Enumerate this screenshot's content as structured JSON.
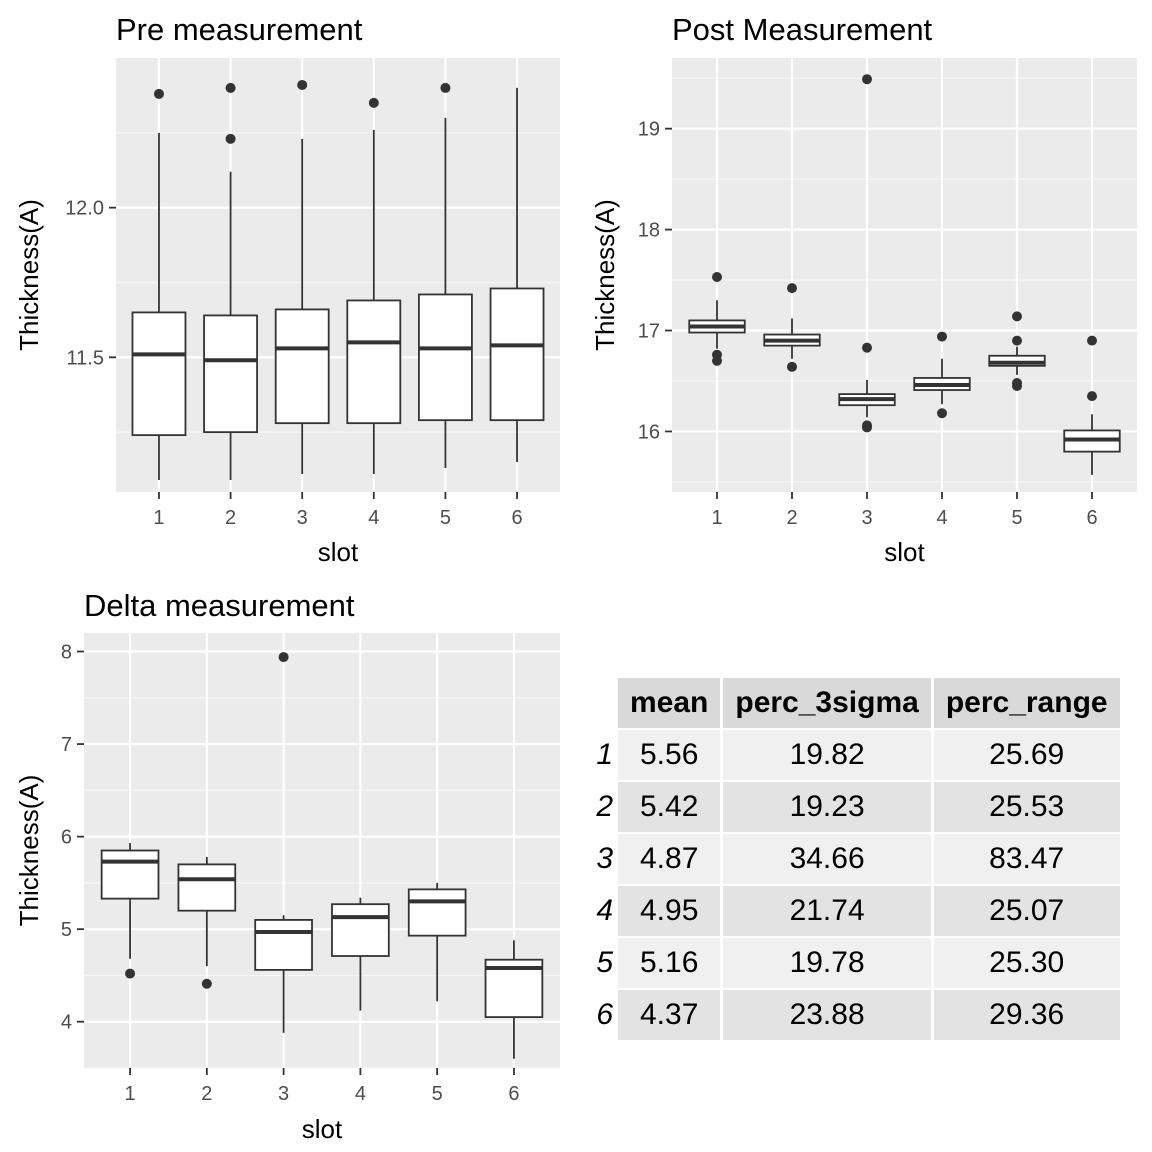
{
  "chart_data": [
    {
      "type": "boxplot",
      "title": "Pre measurement",
      "xlabel": "slot",
      "ylabel": "Thickness(A)",
      "ylim": [
        11.05,
        12.5
      ],
      "yticks": [
        11.5,
        12.0
      ],
      "ytick_labels": [
        "11.5",
        "12.0"
      ],
      "categories": [
        "1",
        "2",
        "3",
        "4",
        "5",
        "6"
      ],
      "boxes": [
        {
          "min": 11.09,
          "q1": 11.24,
          "median": 11.51,
          "q3": 11.65,
          "max": 12.25,
          "outliers": [
            12.38
          ]
        },
        {
          "min": 11.09,
          "q1": 11.25,
          "median": 11.49,
          "q3": 11.64,
          "max": 12.12,
          "outliers": [
            12.23,
            12.4
          ]
        },
        {
          "min": 11.11,
          "q1": 11.28,
          "median": 11.53,
          "q3": 11.66,
          "max": 12.23,
          "outliers": [
            12.41
          ]
        },
        {
          "min": 11.11,
          "q1": 11.28,
          "median": 11.55,
          "q3": 11.69,
          "max": 12.26,
          "outliers": [
            12.35
          ]
        },
        {
          "min": 11.13,
          "q1": 11.29,
          "median": 11.53,
          "q3": 11.71,
          "max": 12.3,
          "outliers": [
            12.4
          ]
        },
        {
          "min": 11.15,
          "q1": 11.29,
          "median": 11.54,
          "q3": 11.73,
          "max": 12.4,
          "outliers": []
        }
      ]
    },
    {
      "type": "boxplot",
      "title": "Post Measurement",
      "xlabel": "slot",
      "ylabel": "Thickness(A)",
      "ylim": [
        15.4,
        19.7
      ],
      "yticks": [
        16,
        17,
        18,
        19
      ],
      "ytick_labels": [
        "16",
        "17",
        "18",
        "19"
      ],
      "categories": [
        "1",
        "2",
        "3",
        "4",
        "5",
        "6"
      ],
      "boxes": [
        {
          "min": 16.82,
          "q1": 16.98,
          "median": 17.04,
          "q3": 17.1,
          "max": 17.3,
          "outliers": [
            17.53,
            16.76,
            16.7
          ]
        },
        {
          "min": 16.72,
          "q1": 16.85,
          "median": 16.9,
          "q3": 16.96,
          "max": 17.12,
          "outliers": [
            17.42,
            16.64
          ]
        },
        {
          "min": 16.14,
          "q1": 16.26,
          "median": 16.32,
          "q3": 16.37,
          "max": 16.51,
          "outliers": [
            19.49,
            16.83,
            16.06,
            16.04
          ]
        },
        {
          "min": 16.27,
          "q1": 16.41,
          "median": 16.46,
          "q3": 16.53,
          "max": 16.72,
          "outliers": [
            16.94,
            16.18
          ]
        },
        {
          "min": 16.56,
          "q1": 16.65,
          "median": 16.68,
          "q3": 16.75,
          "max": 16.84,
          "outliers": [
            17.14,
            16.9,
            16.48,
            16.45
          ]
        },
        {
          "min": 15.57,
          "q1": 15.8,
          "median": 15.92,
          "q3": 16.01,
          "max": 16.17,
          "outliers": [
            16.9,
            16.35
          ]
        }
      ]
    },
    {
      "type": "boxplot",
      "title": "Delta measurement",
      "xlabel": "slot",
      "ylabel": "Thickness(A)",
      "ylim": [
        3.5,
        8.2
      ],
      "yticks": [
        4,
        5,
        6,
        7,
        8
      ],
      "ytick_labels": [
        "4",
        "5",
        "6",
        "7",
        "8"
      ],
      "categories": [
        "1",
        "2",
        "3",
        "4",
        "5",
        "6"
      ],
      "boxes": [
        {
          "min": 4.68,
          "q1": 5.33,
          "median": 5.73,
          "q3": 5.85,
          "max": 5.93,
          "outliers": [
            4.52
          ]
        },
        {
          "min": 4.6,
          "q1": 5.2,
          "median": 5.54,
          "q3": 5.7,
          "max": 5.78,
          "outliers": [
            4.41
          ]
        },
        {
          "min": 3.88,
          "q1": 4.56,
          "median": 4.97,
          "q3": 5.1,
          "max": 5.15,
          "outliers": [
            7.94
          ]
        },
        {
          "min": 4.12,
          "q1": 4.71,
          "median": 5.13,
          "q3": 5.27,
          "max": 5.34,
          "outliers": []
        },
        {
          "min": 4.22,
          "q1": 4.93,
          "median": 5.3,
          "q3": 5.43,
          "max": 5.5,
          "outliers": []
        },
        {
          "min": 3.6,
          "q1": 4.05,
          "median": 4.58,
          "q3": 4.67,
          "max": 4.88,
          "outliers": []
        }
      ]
    },
    {
      "type": "table",
      "columns": [
        "mean",
        "perc_3sigma",
        "perc_range"
      ],
      "row_labels": [
        "1",
        "2",
        "3",
        "4",
        "5",
        "6"
      ],
      "rows": [
        [
          "5.56",
          "19.82",
          "25.69"
        ],
        [
          "5.42",
          "19.23",
          "25.53"
        ],
        [
          "4.87",
          "34.66",
          "83.47"
        ],
        [
          "4.95",
          "21.74",
          "25.07"
        ],
        [
          "5.16",
          "19.78",
          "25.30"
        ],
        [
          "4.37",
          "23.88",
          "29.36"
        ]
      ]
    }
  ],
  "colors": {
    "panel_background": "#ebebeb",
    "grid_major": "#ffffff",
    "grid_minor": "#f5f5f5",
    "box_fill": "#ffffff",
    "box_stroke": "#333333",
    "tick_text": "#4d4d4d",
    "table_header": "#d9d9d9",
    "table_row_odd": "#f0f0f0",
    "table_row_even": "#e3e3e3"
  }
}
